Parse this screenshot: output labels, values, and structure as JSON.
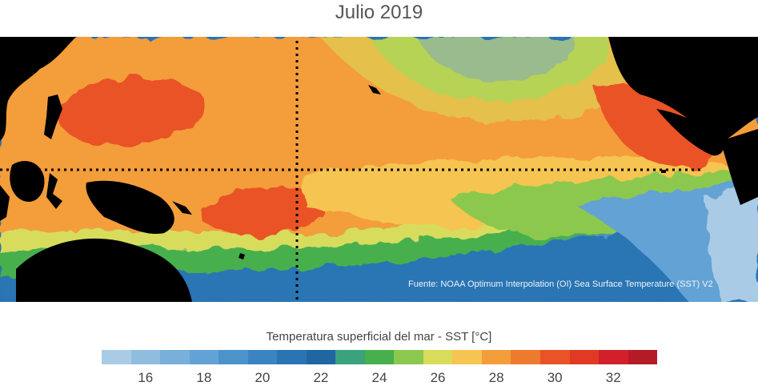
{
  "title": "Julio 2019",
  "source": "Fuente: NOAA Optimum Interpolation (OI) Sea Surface Temperature (SST) V2",
  "colorbar": {
    "label": "Temperatura superficial del mar - SST  [°C]",
    "ticks": [
      "16",
      "18",
      "20",
      "22",
      "24",
      "26",
      "28",
      "30",
      "32"
    ],
    "range": [
      15,
      33
    ],
    "colors": [
      "#a9cbe6",
      "#8fbde0",
      "#79b0db",
      "#63a2d4",
      "#4d93cb",
      "#3a84c1",
      "#2a74b3",
      "#1f66a3",
      "#3aa27d",
      "#47b04d",
      "#8cc84d",
      "#d8dc5b",
      "#f6c451",
      "#f49d3b",
      "#ee7a2e",
      "#e95326",
      "#e13a24",
      "#d2202a",
      "#b51b27"
    ]
  },
  "map": {
    "region": "Pacífico tropical",
    "reference_lines": [
      "equator",
      "date-line"
    ]
  },
  "colors": {
    "land": "#000000",
    "ocean_cold": "#3a84c1",
    "ocean_warm": "#e95326"
  }
}
